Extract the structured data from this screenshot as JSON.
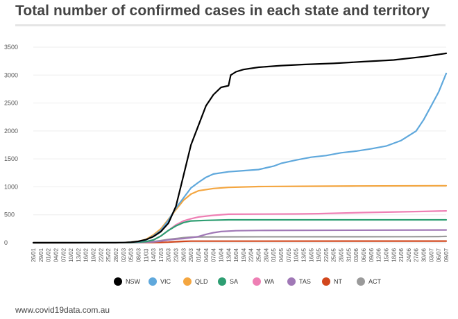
{
  "title": "Total number of confirmed cases in each state and territory",
  "footer": "www.covid19data.com.au",
  "colors": {
    "NSW": "#000000",
    "VIC": "#5fa8dc",
    "QLD": "#f4a640",
    "SA": "#2e9e72",
    "WA": "#ee7fb4",
    "TAS": "#a078b6",
    "NT": "#d2471d",
    "ACT": "#9a9a9a"
  },
  "chart_data": {
    "type": "line",
    "title": "Total number of confirmed cases in each state and territory",
    "xlabel": "",
    "ylabel": "",
    "ylim": [
      0,
      3500
    ],
    "yticks": [
      0,
      500,
      1000,
      1500,
      2000,
      2500,
      3000,
      3500
    ],
    "x_tick_labels": [
      "26/01",
      "29/01",
      "01/02",
      "04/02",
      "07/02",
      "10/02",
      "13/02",
      "16/02",
      "19/02",
      "22/02",
      "25/02",
      "28/02",
      "02/03",
      "05/03",
      "08/03",
      "11/03",
      "14/03",
      "17/03",
      "20/03",
      "23/03",
      "26/03",
      "29/03",
      "01/04",
      "04/04",
      "07/04",
      "10/04",
      "13/04",
      "16/04",
      "19/04",
      "22/04",
      "25/04",
      "28/04",
      "01/05",
      "04/05",
      "07/05",
      "10/05",
      "13/05",
      "16/05",
      "19/05",
      "22/05",
      "25/05",
      "28/05",
      "31/05",
      "03/06",
      "06/06",
      "09/06",
      "12/06",
      "15/06",
      "18/06",
      "21/06",
      "24/06",
      "27/06",
      "30/06",
      "03/07",
      "06/07",
      "09/07"
    ],
    "legend_position": "bottom",
    "series": [
      {
        "name": "NSW",
        "points": [
          [
            0,
            0
          ],
          [
            11,
            0
          ],
          [
            12,
            3
          ],
          [
            13,
            8
          ],
          [
            14,
            25
          ],
          [
            15,
            55
          ],
          [
            16,
            110
          ],
          [
            17,
            200
          ],
          [
            18,
            350
          ],
          [
            19,
            650
          ],
          [
            20,
            1200
          ],
          [
            21,
            1750
          ],
          [
            22,
            2100
          ],
          [
            23,
            2450
          ],
          [
            24,
            2650
          ],
          [
            25,
            2780
          ],
          [
            26,
            2810
          ],
          [
            26.3,
            3000
          ],
          [
            27,
            3060
          ],
          [
            28,
            3100
          ],
          [
            30,
            3140
          ],
          [
            33,
            3170
          ],
          [
            36,
            3190
          ],
          [
            40,
            3210
          ],
          [
            44,
            3240
          ],
          [
            48,
            3270
          ],
          [
            52,
            3330
          ],
          [
            54,
            3370
          ],
          [
            55,
            3390
          ]
        ]
      },
      {
        "name": "VIC",
        "points": [
          [
            0,
            0
          ],
          [
            12,
            2
          ],
          [
            14,
            20
          ],
          [
            15,
            50
          ],
          [
            16,
            120
          ],
          [
            17,
            220
          ],
          [
            18,
            400
          ],
          [
            19,
            620
          ],
          [
            20,
            800
          ],
          [
            21,
            980
          ],
          [
            22,
            1080
          ],
          [
            23,
            1170
          ],
          [
            24,
            1230
          ],
          [
            26,
            1270
          ],
          [
            28,
            1290
          ],
          [
            30,
            1310
          ],
          [
            31,
            1340
          ],
          [
            32,
            1370
          ],
          [
            33,
            1420
          ],
          [
            35,
            1480
          ],
          [
            37,
            1530
          ],
          [
            39,
            1560
          ],
          [
            41,
            1610
          ],
          [
            43,
            1640
          ],
          [
            45,
            1680
          ],
          [
            47,
            1730
          ],
          [
            49,
            1830
          ],
          [
            51,
            2000
          ],
          [
            52,
            2200
          ],
          [
            53,
            2450
          ],
          [
            54,
            2700
          ],
          [
            55,
            3030
          ]
        ]
      },
      {
        "name": "QLD",
        "points": [
          [
            0,
            0
          ],
          [
            12,
            2
          ],
          [
            14,
            25
          ],
          [
            15,
            60
          ],
          [
            16,
            140
          ],
          [
            17,
            250
          ],
          [
            18,
            420
          ],
          [
            19,
            590
          ],
          [
            20,
            760
          ],
          [
            21,
            870
          ],
          [
            22,
            930
          ],
          [
            24,
            970
          ],
          [
            26,
            990
          ],
          [
            30,
            1005
          ],
          [
            36,
            1010
          ],
          [
            43,
            1015
          ],
          [
            55,
            1020
          ]
        ]
      },
      {
        "name": "SA",
        "points": [
          [
            0,
            0
          ],
          [
            13,
            2
          ],
          [
            15,
            20
          ],
          [
            16,
            50
          ],
          [
            17,
            120
          ],
          [
            18,
            220
          ],
          [
            19,
            300
          ],
          [
            20,
            360
          ],
          [
            21,
            390
          ],
          [
            23,
            400
          ],
          [
            26,
            410
          ],
          [
            55,
            410
          ]
        ]
      },
      {
        "name": "WA",
        "points": [
          [
            0,
            0
          ],
          [
            13,
            2
          ],
          [
            15,
            20
          ],
          [
            16,
            50
          ],
          [
            17,
            120
          ],
          [
            18,
            220
          ],
          [
            19,
            320
          ],
          [
            20,
            390
          ],
          [
            21,
            430
          ],
          [
            22,
            460
          ],
          [
            24,
            490
          ],
          [
            26,
            510
          ],
          [
            35,
            515
          ],
          [
            38,
            520
          ],
          [
            44,
            540
          ],
          [
            52,
            560
          ],
          [
            55,
            570
          ]
        ]
      },
      {
        "name": "TAS",
        "points": [
          [
            0,
            0
          ],
          [
            14,
            2
          ],
          [
            16,
            15
          ],
          [
            17,
            30
          ],
          [
            18,
            50
          ],
          [
            19,
            65
          ],
          [
            20,
            75
          ],
          [
            21,
            90
          ],
          [
            22,
            110
          ],
          [
            23,
            150
          ],
          [
            24,
            180
          ],
          [
            25,
            200
          ],
          [
            27,
            215
          ],
          [
            30,
            220
          ],
          [
            55,
            228
          ]
        ]
      },
      {
        "name": "NT",
        "points": [
          [
            0,
            0
          ],
          [
            16,
            2
          ],
          [
            17,
            5
          ],
          [
            18,
            10
          ],
          [
            19,
            18
          ],
          [
            20,
            25
          ],
          [
            21,
            28
          ],
          [
            24,
            29
          ],
          [
            50,
            30
          ],
          [
            55,
            30
          ]
        ]
      },
      {
        "name": "ACT",
        "points": [
          [
            0,
            0
          ],
          [
            14,
            2
          ],
          [
            16,
            20
          ],
          [
            17,
            40
          ],
          [
            18,
            60
          ],
          [
            19,
            75
          ],
          [
            20,
            90
          ],
          [
            21,
            100
          ],
          [
            22,
            103
          ],
          [
            26,
            105
          ],
          [
            50,
            108
          ],
          [
            54,
            110
          ],
          [
            55,
            113
          ]
        ]
      }
    ]
  }
}
